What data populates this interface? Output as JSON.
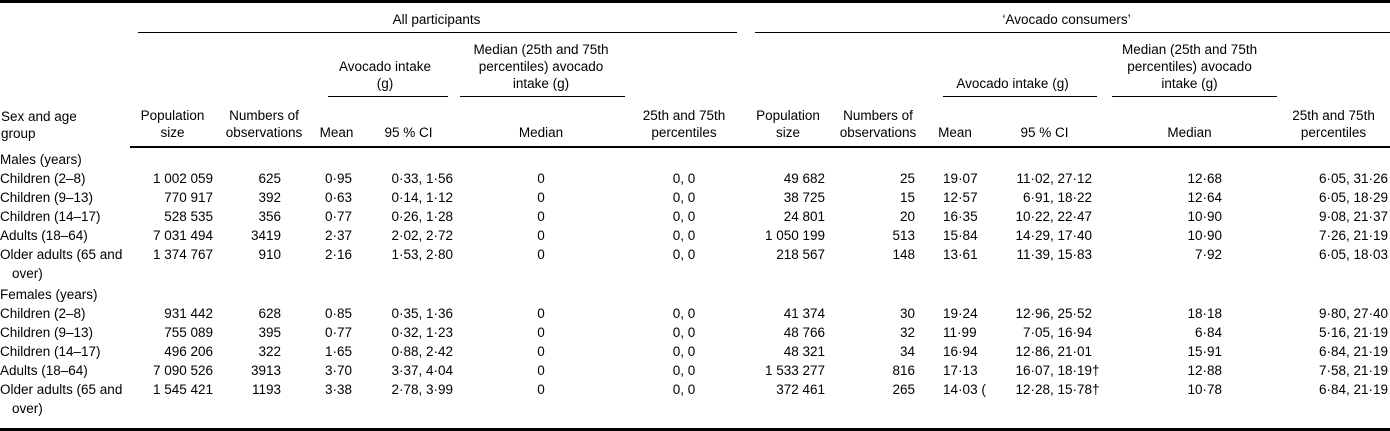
{
  "table": {
    "group_headers": {
      "all_participants": "All participants",
      "avocado_consumers": "‘Avocado consumers’"
    },
    "sub_headers": {
      "avocado_intake": "Avocado intake (g)",
      "median_intake": "Median (25th and 75th percentiles) avocado intake (g)"
    },
    "column_headers": {
      "sex_age_group": "Sex and age group",
      "population_size": "Population size",
      "numbers_of_observations": "Numbers of observations",
      "mean": "Mean",
      "ci": "95 % CI",
      "median": "Median",
      "percentiles": "25th and 75th percentiles"
    },
    "sections": [
      {
        "label": "Males (years)",
        "rows": [
          {
            "label": "Children (2–8)",
            "cells": [
              "1 002 059",
              "625",
              "0·95",
              "0·33, 1·56",
              "0",
              "0, 0",
              "49 682",
              "25",
              "19·07",
              "11·02, 27·12",
              "12·68",
              "6·05, 31·26"
            ]
          },
          {
            "label": "Children (9–13)",
            "cells": [
              "770 917",
              "392",
              "0·63",
              "0·14, 1·12",
              "0",
              "0, 0",
              "38 725",
              "15",
              "12·57",
              "6·91, 18·22",
              "12·64",
              "6·05, 18·29"
            ]
          },
          {
            "label": "Children (14–17)",
            "cells": [
              "528 535",
              "356",
              "0·77",
              "0·26, 1·28",
              "0",
              "0, 0",
              "24 801",
              "20",
              "16·35",
              "10·22, 22·47",
              "10·90",
              "9·08, 21·37"
            ]
          },
          {
            "label": "Adults (18–64)",
            "cells": [
              "7 031 494",
              "3419",
              "2·37",
              "2·02, 2·72",
              "0",
              "0, 0",
              "1 050 199",
              "513",
              "15·84",
              "14·29, 17·40",
              "10·90",
              "7·26, 21·19"
            ]
          },
          {
            "label": "Older adults (65 and over)",
            "cells": [
              "1 374 767",
              "910",
              "2·16",
              "1·53, 2·80",
              "0",
              "0, 0",
              "218 567",
              "148",
              "13·61",
              "11·39, 15·83",
              "7·92",
              "6·05, 18·03"
            ]
          }
        ]
      },
      {
        "label": "Females (years)",
        "rows": [
          {
            "label": "Children (2–8)",
            "cells": [
              "931 442",
              "628",
              "0·85",
              "0·35, 1·36",
              "0",
              "0, 0",
              "41 374",
              "30",
              "19·24",
              "12·96, 25·52",
              "18·18",
              "9·80, 27·40"
            ]
          },
          {
            "label": "Children (9–13)",
            "cells": [
              "755 089",
              "395",
              "0·77",
              "0·32, 1·23",
              "0",
              "0, 0",
              "48 766",
              "32",
              "11·99",
              "7·05, 16·94",
              "6·84",
              "5·16, 21·19"
            ]
          },
          {
            "label": "Children (14–17)",
            "cells": [
              "496 206",
              "322",
              "1·65",
              "0·88, 2·42",
              "0",
              "0, 0",
              "48 321",
              "34",
              "16·94",
              "12·86, 21·01",
              "15·91",
              "6·84, 21·19"
            ]
          },
          {
            "label": "Adults (18–64)",
            "cells": [
              "7 090 526",
              "3913",
              "3·70",
              "3·37, 4·04",
              "0",
              "0, 0",
              "1 533 277",
              "816",
              "17·13",
              "16·07, 18·19†",
              "12·88",
              "7·58, 21·19"
            ]
          },
          {
            "label": "Older adults (65 and over)",
            "cells": [
              "1 545 421",
              "1193",
              "3·38",
              "2·78, 3·99",
              "0",
              "0, 0",
              "372 461",
              "265",
              "14·03 (",
              "12·28, 15·78†",
              "10·78",
              "6·84, 21·19"
            ]
          }
        ]
      }
    ]
  }
}
